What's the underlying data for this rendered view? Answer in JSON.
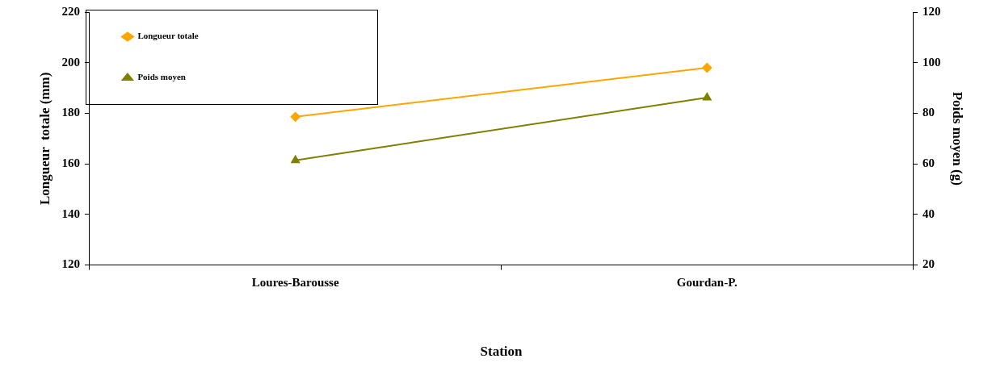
{
  "chart_data": {
    "type": "line",
    "xlabel": "Station",
    "ylabel": "Longueur  totale (mm)",
    "y2label": "Poids moyen (g)",
    "categories": [
      "Loures-Barousse",
      "Gourdan-P."
    ],
    "series": [
      {
        "name": "Longueur totale",
        "color": "#ffa500",
        "values": [
          178.6,
          198
        ],
        "marker": "diamond"
      },
      {
        "name": "Poids moyen",
        "color": "#808000",
        "values": [
          61.4,
          86.2
        ],
        "marker": "triangle",
        "axis": "y2"
      }
    ],
    "ylim": [
      120,
      220
    ],
    "yticks": [
      120,
      140,
      160,
      180,
      200,
      220
    ],
    "y2lim": [
      20,
      120
    ],
    "y2ticks": [
      20,
      40,
      60,
      80,
      100,
      120
    ],
    "grid": false,
    "legend": "top left",
    "line_style": "solid"
  }
}
